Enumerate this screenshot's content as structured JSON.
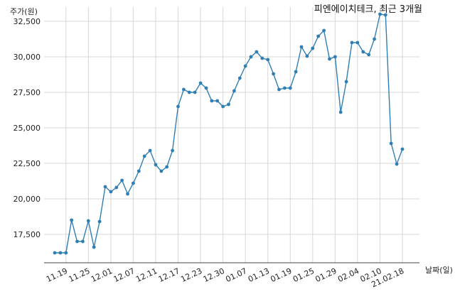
{
  "chart_data": {
    "type": "line",
    "title": "피엔에이치테크, 최근 3개월",
    "ylabel": "주가(원)",
    "xlabel": "날짜(일)",
    "ylim": [
      15500,
      33500
    ],
    "y_ticks": [
      17500,
      20000,
      22500,
      25000,
      27500,
      30000,
      32500
    ],
    "y_tick_labels": [
      "17,500",
      "20,000",
      "22,500",
      "25,000",
      "27,500",
      "30,000",
      "32,500"
    ],
    "x_ticks": [
      {
        "index": 2,
        "label": "11.19"
      },
      {
        "index": 6,
        "label": "11.25"
      },
      {
        "index": 10,
        "label": "12.01"
      },
      {
        "index": 14,
        "label": "12.07"
      },
      {
        "index": 18,
        "label": "12.11"
      },
      {
        "index": 22,
        "label": "12.17"
      },
      {
        "index": 26,
        "label": "12.23"
      },
      {
        "index": 30,
        "label": "12.30"
      },
      {
        "index": 34,
        "label": "01.07"
      },
      {
        "index": 38,
        "label": "01.13"
      },
      {
        "index": 42,
        "label": "01.19"
      },
      {
        "index": 46,
        "label": "01.25"
      },
      {
        "index": 50,
        "label": "01.29"
      },
      {
        "index": 54,
        "label": "02.04"
      },
      {
        "index": 58,
        "label": "02.10"
      },
      {
        "index": 62,
        "label": "21.02.18"
      }
    ],
    "grid": true,
    "series": [
      {
        "color": "#2f7fb5",
        "values": [
          16200,
          16200,
          16200,
          18500,
          17000,
          17000,
          18450,
          16600,
          18400,
          20850,
          20500,
          20800,
          21300,
          20350,
          21100,
          21950,
          23000,
          23400,
          22400,
          21950,
          22250,
          23400,
          26500,
          27700,
          27500,
          27500,
          28150,
          27800,
          26900,
          26900,
          26500,
          26650,
          27600,
          28500,
          29350,
          30000,
          30350,
          29900,
          29800,
          28800,
          27700,
          27800,
          27800,
          28950,
          30700,
          30050,
          30600,
          31450,
          31850,
          29850,
          30000,
          26100,
          28250,
          31000,
          31000,
          30350,
          30150,
          31250,
          33000,
          32950,
          23900,
          22450,
          23500
        ]
      }
    ]
  }
}
